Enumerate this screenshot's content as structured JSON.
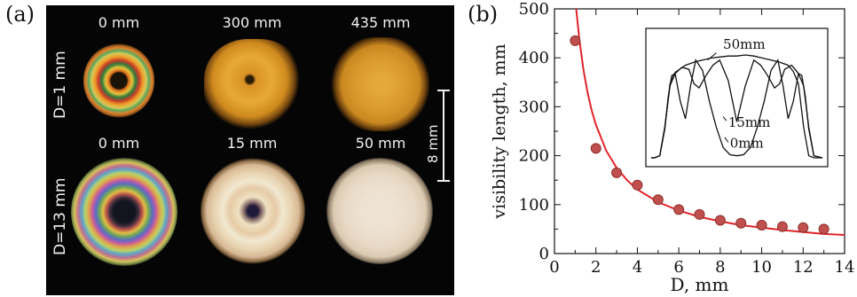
{
  "panel_a": {
    "tag": "(a)",
    "column_labels_row1": [
      "0 mm",
      "300 mm",
      "435 mm"
    ],
    "column_labels_row2": [
      "0 mm",
      "15 mm",
      "50 mm"
    ],
    "row_labels": [
      "D=1 mm",
      "D=13 mm"
    ],
    "scale_label": "8 mm"
  },
  "panel_b": {
    "tag": "(b)"
  },
  "colors": {
    "fit_line": "#e0242a",
    "marker": "#c0504d",
    "marker_edge": "#8e2f2c"
  },
  "chart_data": [
    {
      "type": "scatter",
      "xlabel": "D, mm",
      "ylabel": "visibility length, mm",
      "xlim": [
        0,
        14
      ],
      "ylim": [
        0,
        500
      ],
      "xticks": [
        0,
        2,
        4,
        6,
        8,
        10,
        12,
        14
      ],
      "yticks": [
        0,
        100,
        200,
        300,
        400,
        500
      ],
      "grid": false,
      "x": [
        1,
        2,
        3,
        4,
        5,
        6,
        7,
        8,
        9,
        10,
        11,
        12,
        13
      ],
      "y": [
        435,
        215,
        165,
        140,
        110,
        90,
        80,
        68,
        62,
        58,
        55,
        53,
        50
      ],
      "fit": {
        "type": "line",
        "x": [
          1.05,
          1.2,
          1.4,
          1.6,
          1.8,
          2,
          2.5,
          3,
          3.5,
          4,
          5,
          6,
          7,
          8,
          9,
          10,
          11,
          12,
          13,
          14
        ],
        "y": [
          500,
          438,
          375,
          328,
          292,
          263,
          210,
          175,
          150,
          131,
          105,
          88,
          75,
          66,
          58,
          53,
          48,
          44,
          40,
          38
        ]
      }
    },
    {
      "type": "line",
      "series_labels": [
        "50mm",
        "15mm",
        "0mm"
      ],
      "series": [
        {
          "name": "50mm",
          "x": [
            0,
            2,
            5,
            8,
            11,
            14,
            20,
            25,
            30,
            35,
            40,
            45,
            50,
            55,
            60,
            65,
            70,
            75,
            80,
            83,
            86,
            89,
            92,
            95,
            100
          ],
          "y": [
            0,
            0,
            0.02,
            0.3,
            0.72,
            0.83,
            0.9,
            0.93,
            0.95,
            0.97,
            0.98,
            0.99,
            0.99,
            1.0,
            0.99,
            0.97,
            0.95,
            0.93,
            0.9,
            0.84,
            0.72,
            0.3,
            0.02,
            0,
            0
          ]
        },
        {
          "name": "15mm",
          "x": [
            0,
            2,
            5,
            8,
            11,
            14,
            18,
            22,
            25,
            28,
            32,
            36,
            40,
            45,
            50,
            55,
            60,
            64,
            68,
            72,
            75,
            78,
            82,
            86,
            89,
            92,
            95,
            100
          ],
          "y": [
            0,
            0,
            0.02,
            0.3,
            0.7,
            0.82,
            0.88,
            0.86,
            0.72,
            0.68,
            0.8,
            0.9,
            0.95,
            0.75,
            0.35,
            0.7,
            0.95,
            0.9,
            0.8,
            0.68,
            0.72,
            0.86,
            0.9,
            0.82,
            0.7,
            0.3,
            0.02,
            0
          ]
        },
        {
          "name": "0mm",
          "x": [
            0,
            2,
            5,
            8,
            10,
            12,
            14,
            17,
            20,
            23,
            26,
            30,
            34,
            38,
            42,
            46,
            50,
            54,
            58,
            62,
            66,
            70,
            74,
            77,
            80,
            83,
            86,
            88,
            90,
            92,
            95,
            100
          ],
          "y": [
            0,
            0,
            0.02,
            0.28,
            0.6,
            0.8,
            0.82,
            0.55,
            0.38,
            0.7,
            0.95,
            0.85,
            0.55,
            0.3,
            0.1,
            0.03,
            0.02,
            0.03,
            0.1,
            0.3,
            0.55,
            0.85,
            0.95,
            0.7,
            0.38,
            0.55,
            0.82,
            0.8,
            0.6,
            0.28,
            0.02,
            0
          ]
        }
      ]
    }
  ]
}
